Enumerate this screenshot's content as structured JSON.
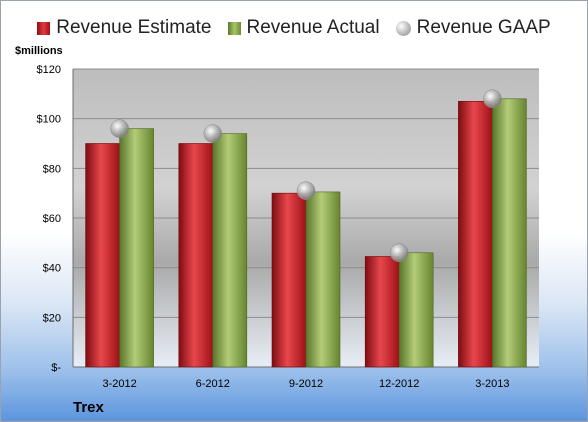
{
  "legend": {
    "estimate_label": "Revenue Estimate",
    "actual_label": "Revenue Actual",
    "gaap_label": "Revenue GAAP"
  },
  "units_label": "$millions",
  "company": "Trex",
  "colors": {
    "estimate": "#c8262c",
    "actual": "#8aa84c",
    "gaap": "#c0c0c0"
  },
  "chart_data": {
    "type": "bar",
    "categories": [
      "3-2012",
      "6-2012",
      "9-2012",
      "12-2012",
      "3-2013"
    ],
    "series": [
      {
        "name": "Revenue Estimate",
        "values": [
          90,
          90,
          70,
          44.5,
          107
        ]
      },
      {
        "name": "Revenue Actual",
        "values": [
          96,
          94,
          70.5,
          46,
          108
        ]
      },
      {
        "name": "Revenue GAAP",
        "values": [
          96,
          94,
          71,
          46,
          108
        ]
      }
    ],
    "ylim": [
      0,
      120
    ],
    "yticks": [
      0,
      20,
      40,
      60,
      80,
      100,
      120
    ],
    "ytick_labels": [
      "$-",
      "$20",
      "$40",
      "$60",
      "$80",
      "$100",
      "$120"
    ],
    "ylabel": "$millions",
    "xlabel": "",
    "grid": true,
    "legend_position": "top"
  }
}
